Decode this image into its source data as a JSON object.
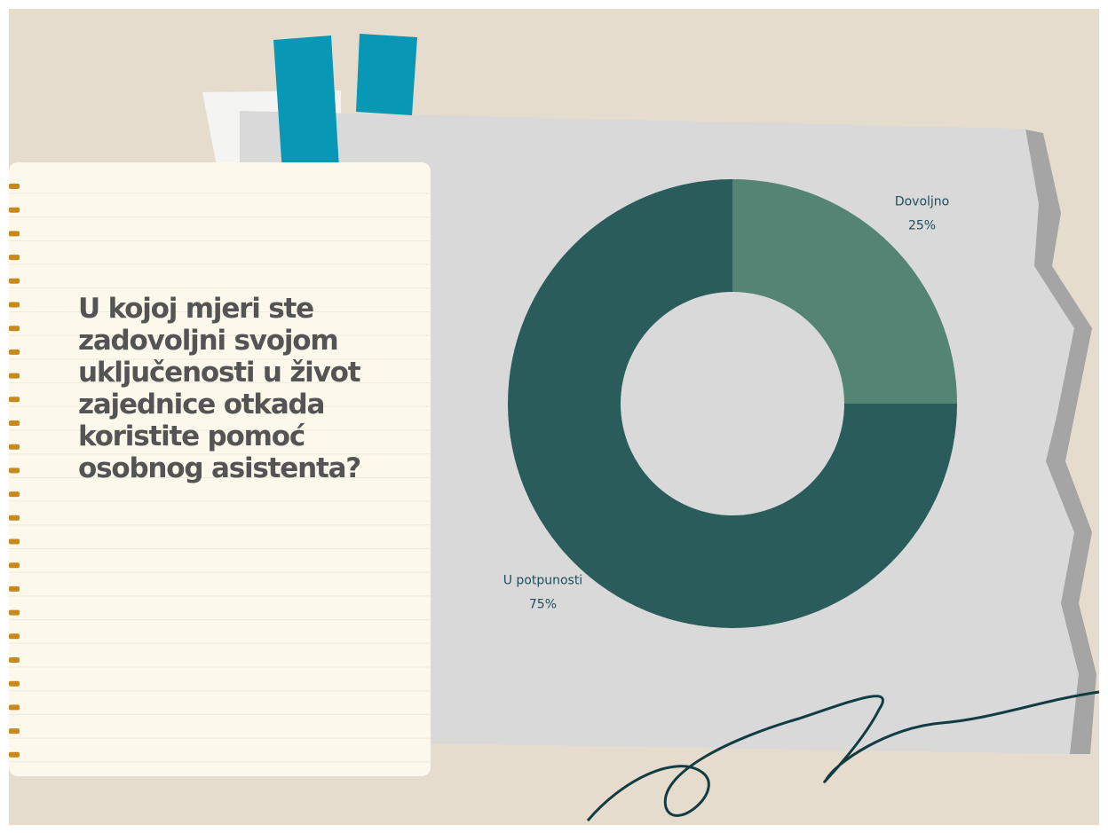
{
  "chart_data": {
    "type": "donut",
    "title": "U kojoj mjeri ste zadovoljni svojom uključenosti u život zajednice otkada koristite pomoć osobnog asistenta?",
    "categories": [
      "Dovoljno",
      "U potpunosti"
    ],
    "values": [
      25,
      75
    ],
    "value_labels": [
      "25%",
      "75%"
    ],
    "colors": [
      "#548474",
      "#2a5c5c"
    ]
  }
}
